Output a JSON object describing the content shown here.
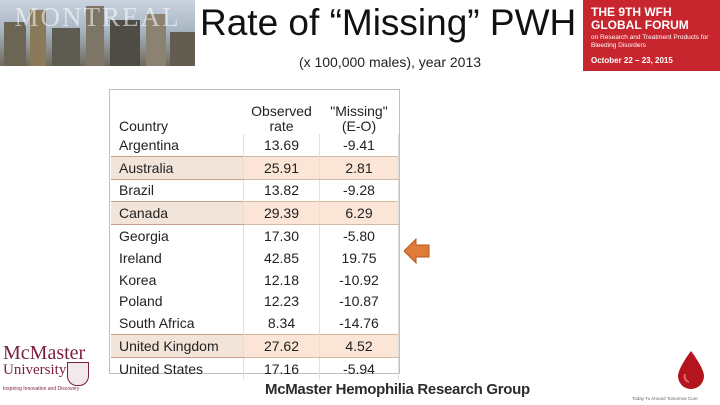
{
  "header": {
    "banner_text": "MONTREAL",
    "title": "Rate of “Missing” PWH",
    "subtitle": "(x 100,000 males), year 2013"
  },
  "forum": {
    "line1": "THE 9TH WFH",
    "line2": "GLOBAL FORUM",
    "line3": "on Research and Treatment Products for Bleeding Disorders",
    "date": "October 22 – 23, 2015",
    "color": "#c8262f"
  },
  "table": {
    "headers": {
      "country": "Country",
      "observed_line1": "Observed",
      "observed_line2": "rate",
      "missing_line1": "\"Missing\"",
      "missing_line2": "(E-O)"
    },
    "rows": [
      {
        "country": "Argentina",
        "observed": "13.69",
        "missing": "-9.41",
        "highlight": false
      },
      {
        "country": "Australia",
        "observed": "25.91",
        "missing": "2.81",
        "highlight": true
      },
      {
        "country": "Brazil",
        "observed": "13.82",
        "missing": "-9.28",
        "highlight": false
      },
      {
        "country": "Canada",
        "observed": "29.39",
        "missing": "6.29",
        "highlight": true
      },
      {
        "country": "Georgia",
        "observed": "17.30",
        "missing": "-5.80",
        "highlight": false
      },
      {
        "country": "Ireland",
        "observed": "42.85",
        "missing": "19.75",
        "highlight": false
      },
      {
        "country": "Korea",
        "observed": "12.18",
        "missing": "-10.92",
        "highlight": false
      },
      {
        "country": "Poland",
        "observed": "12.23",
        "missing": "-10.87",
        "highlight": false
      },
      {
        "country": "South Africa",
        "observed": "8.34",
        "missing": "-14.76",
        "highlight": false
      },
      {
        "country": "United Kingdom",
        "observed": "27.62",
        "missing": "4.52",
        "highlight": true
      },
      {
        "country": "United States",
        "observed": "17.16",
        "missing": "-5.94",
        "highlight": false
      }
    ],
    "highlight_color": "#fbe5d6"
  },
  "arrow": {
    "icon": "left-arrow-icon",
    "color": "#e07b39"
  },
  "footer": {
    "university_name": "McMaster",
    "university_word": "University",
    "university_tagline": "Inspiring Innovation and Discovery",
    "group_name": "McMaster Hemophilia Research Group",
    "drop_tagline": "Today Tx Around Tomorrow Cure"
  }
}
